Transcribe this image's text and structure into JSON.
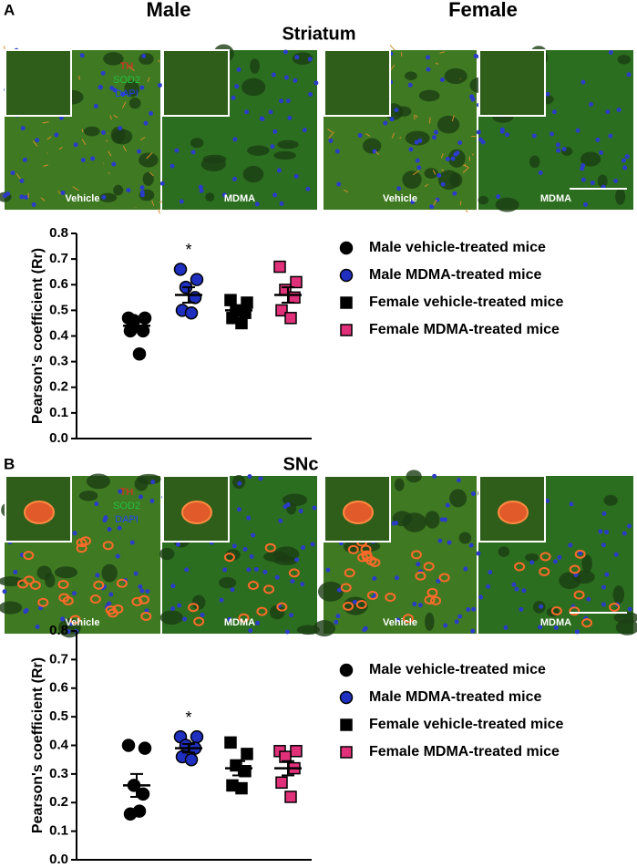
{
  "figure": {
    "panels": [
      {
        "label": "A",
        "region": "Striatum",
        "columns": [
          "Male",
          "Female"
        ],
        "images": [
          "Vehicle",
          "MDMA",
          "Vehicle",
          "MDMA"
        ],
        "stains": [
          {
            "name": "TH",
            "color": "#ff2020"
          },
          {
            "name": "SOD2",
            "color": "#20c040"
          },
          {
            "name": "DAPI",
            "color": "#2040ff"
          }
        ]
      },
      {
        "label": "B",
        "region": "SNc",
        "images": [
          "Vehicle",
          "MDMA",
          "Vehicle",
          "MDMA"
        ],
        "stains": [
          {
            "name": "TH",
            "color": "#ff2020"
          },
          {
            "name": "SOD2",
            "color": "#20c040"
          },
          {
            "name": "DAPI",
            "color": "#2040ff"
          }
        ]
      }
    ]
  },
  "chart_data": [
    {
      "type": "dot",
      "ylabel": "Pearson's coefficient (Rr)",
      "ylim": [
        0,
        0.8
      ],
      "yticks": [
        {
          "value": 0,
          "label": "0.0"
        },
        {
          "value": 0.1,
          "label": "0.1"
        },
        {
          "value": 0.2,
          "label": "0.2"
        },
        {
          "value": 0.3,
          "label": "0.3"
        },
        {
          "value": 0.4,
          "label": "0.4"
        },
        {
          "value": 0.5,
          "label": "0.5"
        },
        {
          "value": 0.6,
          "label": "0.6"
        },
        {
          "value": 0.7,
          "label": "0.7"
        },
        {
          "value": 0.8,
          "label": "0.8"
        }
      ],
      "series": [
        {
          "name": "Male vehicle-treated mice",
          "color": "#000000",
          "marker": "circle",
          "values": [
            0.47,
            0.47,
            0.46,
            0.42,
            0.42,
            0.33
          ],
          "mean": 0.44,
          "sem": 0.02
        },
        {
          "name": "Male MDMA-treated mice",
          "color": "#1f2fbf",
          "marker": "circle",
          "values": [
            0.66,
            0.62,
            0.59,
            0.55,
            0.5,
            0.49
          ],
          "mean": 0.56,
          "sem": 0.03
        },
        {
          "name": "Female vehicle-treated mice",
          "color": "#000000",
          "marker": "square",
          "values": [
            0.54,
            0.53,
            0.5,
            0.49,
            0.47,
            0.45
          ],
          "mean": 0.5,
          "sem": 0.015
        },
        {
          "name": "Female MDMA-treated mice",
          "color": "#e0307a",
          "marker": "square",
          "values": [
            0.67,
            0.61,
            0.58,
            0.55,
            0.5,
            0.47
          ],
          "mean": 0.56,
          "sem": 0.03
        }
      ],
      "annotations": [
        {
          "text": "*",
          "series": 1
        }
      ]
    },
    {
      "type": "dot",
      "ylabel": "Pearson's coefficient (Rr)",
      "ylim": [
        0,
        0.8
      ],
      "yticks": [
        {
          "value": 0,
          "label": "0.0"
        },
        {
          "value": 0.1,
          "label": "0.1"
        },
        {
          "value": 0.2,
          "label": "0.2"
        },
        {
          "value": 0.3,
          "label": "0.3"
        },
        {
          "value": 0.4,
          "label": "0.4"
        },
        {
          "value": 0.5,
          "label": "0.5"
        },
        {
          "value": 0.6,
          "label": "0.6"
        },
        {
          "value": 0.7,
          "label": "0.7"
        },
        {
          "value": 0.8,
          "label": "0.8"
        }
      ],
      "series": [
        {
          "name": "Male vehicle-treated mice",
          "color": "#000000",
          "marker": "circle",
          "values": [
            0.4,
            0.39,
            0.26,
            0.23,
            0.16,
            0.17
          ],
          "mean": 0.26,
          "sem": 0.04
        },
        {
          "name": "Male MDMA-treated mice",
          "color": "#1f2fbf",
          "marker": "circle",
          "values": [
            0.43,
            0.43,
            0.4,
            0.39,
            0.36,
            0.35
          ],
          "mean": 0.39,
          "sem": 0.015
        },
        {
          "name": "Female vehicle-treated mice",
          "color": "#000000",
          "marker": "square",
          "values": [
            0.41,
            0.37,
            0.33,
            0.31,
            0.26,
            0.25
          ],
          "mean": 0.32,
          "sem": 0.025
        },
        {
          "name": "Female MDMA-treated mice",
          "color": "#e0307a",
          "marker": "square",
          "values": [
            0.38,
            0.38,
            0.36,
            0.32,
            0.27,
            0.22
          ],
          "mean": 0.32,
          "sem": 0.025
        }
      ],
      "annotations": [
        {
          "text": "*",
          "series": 1
        }
      ]
    }
  ]
}
